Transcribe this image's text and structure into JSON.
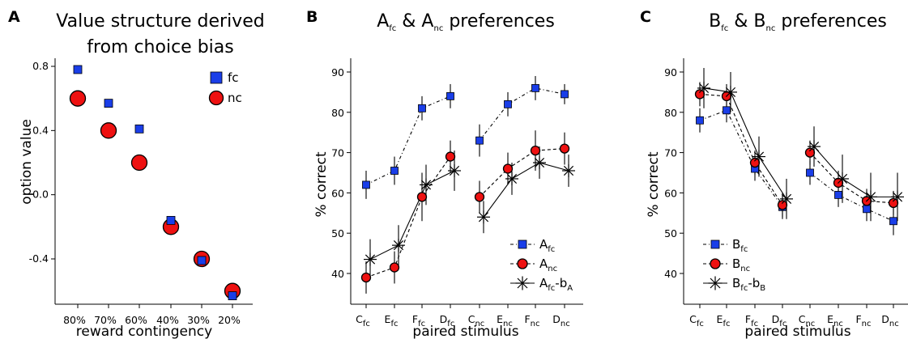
{
  "chart_data": [
    {
      "panel": "A",
      "type": "scatter",
      "title_lines": [
        "Value structure derived",
        "from choice bias"
      ],
      "xlabel": "reward contingency",
      "ylabel": "option value",
      "categories": [
        "80%",
        "70%",
        "60%",
        "40%",
        "30%",
        "20%"
      ],
      "ylim": [
        -0.65,
        0.85
      ],
      "yticks": [
        {
          "v": 0.8,
          "label": "0.8"
        },
        {
          "v": 0.4,
          "label": "0.4"
        },
        {
          "v": 0.0,
          "label": "0.0"
        },
        {
          "v": -0.4,
          "label": "-0.4"
        }
      ],
      "series": [
        {
          "name": "nc",
          "marker": "circle",
          "color": "#ee1111",
          "values": [
            0.6,
            0.4,
            0.2,
            -0.2,
            -0.4,
            -0.6
          ]
        },
        {
          "name": "fc",
          "marker": "square",
          "color": "#1a3ee8",
          "values": [
            0.78,
            0.57,
            0.41,
            -0.16,
            -0.41,
            -0.63
          ]
        }
      ],
      "legend": "top-right"
    },
    {
      "panel": "B",
      "type": "line",
      "title_main": "A",
      "title_sub1": "fc",
      "title_mid": " & A",
      "title_sub2": "nc",
      "title_tail": " preferences",
      "xlabel": "paired stimulus",
      "ylabel": "% correct",
      "categories": [
        {
          "base": "C",
          "sub": "fc"
        },
        {
          "base": "E",
          "sub": "fc"
        },
        {
          "base": "F",
          "sub": "fc"
        },
        {
          "base": "D",
          "sub": "fc"
        },
        {
          "base": "C",
          "sub": "nc"
        },
        {
          "base": "E",
          "sub": "nc"
        },
        {
          "base": "F",
          "sub": "nc"
        },
        {
          "base": "D",
          "sub": "nc"
        }
      ],
      "ylim": [
        33,
        93
      ],
      "yticks": [
        {
          "v": 40,
          "label": "40"
        },
        {
          "v": 50,
          "label": "50"
        },
        {
          "v": 60,
          "label": "60"
        },
        {
          "v": 70,
          "label": "70"
        },
        {
          "v": 80,
          "label": "80"
        },
        {
          "v": 90,
          "label": "90"
        }
      ],
      "series": [
        {
          "name": "fc",
          "label_base": "A",
          "label_sub": "fc",
          "marker": "square",
          "color": "#1a3ee8",
          "dash": "dashdot",
          "values": [
            62,
            65.5,
            81,
            84,
            73,
            82,
            86,
            84.5
          ],
          "err": [
            3.5,
            3.5,
            3,
            3,
            4,
            3,
            3,
            2.5
          ]
        },
        {
          "name": "nc",
          "label_base": "A",
          "label_sub": "nc",
          "marker": "circle",
          "color": "#ee1111",
          "dash": "dashed",
          "values": [
            39,
            41.5,
            59,
            69,
            59,
            66,
            70.5,
            71
          ],
          "err": [
            4,
            4,
            6,
            4,
            4,
            4,
            5,
            4
          ]
        },
        {
          "name": "fc-b",
          "label_base": "A",
          "label_sub": "fc",
          "label_tail": "-b",
          "label_sub2": "A",
          "marker": "star",
          "color": "#000000",
          "dash": "solid",
          "values": [
            43.5,
            47,
            62,
            65.5,
            54,
            63.5,
            67.5,
            65.5
          ],
          "err": [
            5,
            5,
            5,
            5,
            4,
            4,
            4,
            4
          ]
        }
      ],
      "legend": "bottom-right"
    },
    {
      "panel": "C",
      "type": "line",
      "title_main": "B",
      "title_sub1": "fc",
      "title_mid": " & B",
      "title_sub2": "nc",
      "title_tail": " preferences",
      "xlabel": "paired stimulus",
      "ylabel": "% correct",
      "categories": [
        {
          "base": "C",
          "sub": "fc"
        },
        {
          "base": "E",
          "sub": "fc"
        },
        {
          "base": "F",
          "sub": "fc"
        },
        {
          "base": "D",
          "sub": "fc"
        },
        {
          "base": "C",
          "sub": "nc"
        },
        {
          "base": "E",
          "sub": "nc"
        },
        {
          "base": "F",
          "sub": "nc"
        },
        {
          "base": "D",
          "sub": "nc"
        }
      ],
      "ylim": [
        33,
        93
      ],
      "yticks": [
        {
          "v": 40,
          "label": "40"
        },
        {
          "v": 50,
          "label": "50"
        },
        {
          "v": 60,
          "label": "60"
        },
        {
          "v": 70,
          "label": "70"
        },
        {
          "v": 80,
          "label": "80"
        },
        {
          "v": 90,
          "label": "90"
        }
      ],
      "series": [
        {
          "name": "fc",
          "label_base": "B",
          "label_sub": "fc",
          "marker": "square",
          "color": "#1a3ee8",
          "dash": "dashdot",
          "values": [
            78,
            80.5,
            66,
            56.5,
            65,
            59.5,
            56,
            53
          ],
          "err": [
            3,
            3,
            3,
            3,
            3,
            3,
            3,
            3.5
          ]
        },
        {
          "name": "nc",
          "label_base": "B",
          "label_sub": "nc",
          "marker": "circle",
          "color": "#ee1111",
          "dash": "dashed",
          "values": [
            84.5,
            84,
            67.5,
            57,
            70,
            62.5,
            58,
            57.5
          ],
          "err": [
            3,
            3,
            3,
            3,
            3,
            3,
            3,
            3
          ]
        },
        {
          "name": "fc-b",
          "label_base": "B",
          "label_sub": "fc",
          "label_tail": "-b",
          "label_sub2": "B",
          "marker": "star",
          "color": "#000000",
          "dash": "solid",
          "values": [
            86,
            85,
            69,
            58.5,
            71.5,
            63.5,
            59,
            59
          ],
          "err": [
            5,
            5,
            5,
            5,
            5,
            6,
            6,
            6
          ]
        }
      ],
      "legend": "bottom-left"
    }
  ]
}
